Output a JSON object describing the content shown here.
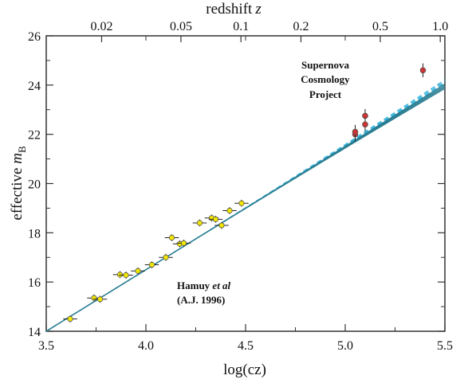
{
  "chart_data": {
    "type": "scatter",
    "xlabel": "log(cz)",
    "ylabel": "effective m_B",
    "ylabel_main": "effective ",
    "ylabel_var": "m",
    "ylabel_sub": "B",
    "top_axis_label": "redshift",
    "top_axis_var": "z",
    "xlim": [
      3.5,
      5.5
    ],
    "ylim": [
      14,
      26
    ],
    "xticks": [
      3.5,
      4.0,
      4.5,
      5.0,
      5.5
    ],
    "xtick_labels": [
      "3.5",
      "4.0",
      "4.5",
      "5.0",
      "5.5"
    ],
    "yticks": [
      14,
      16,
      18,
      20,
      22,
      24,
      26
    ],
    "ytick_labels": [
      "14",
      "16",
      "18",
      "20",
      "22",
      "24",
      "26"
    ],
    "top_ticks": [
      0.02,
      0.05,
      0.1,
      0.2,
      0.5,
      1.0
    ],
    "top_tick_labels": [
      "0.02",
      "0.05",
      "0.1",
      "0.2",
      "0.5",
      "1.0"
    ],
    "annotations": {
      "hamuy_line1_name": "Hamuy ",
      "hamuy_line1_etal": "et al",
      "hamuy_line2": "(A.J. 1996)",
      "scp_line1": "Supernova",
      "scp_line2": "Cosmology",
      "scp_line3": "Project"
    },
    "series": [
      {
        "name": "Hamuy et al (A.J. 1996)",
        "color": "#f2e600",
        "x": [
          3.62,
          3.74,
          3.77,
          3.87,
          3.9,
          3.96,
          4.03,
          4.1,
          4.13,
          4.17,
          4.19,
          4.27,
          4.33,
          4.35,
          4.38,
          4.42,
          4.48
        ],
        "y": [
          14.5,
          15.35,
          15.3,
          16.3,
          16.28,
          16.45,
          16.7,
          17.0,
          17.8,
          17.55,
          17.58,
          18.4,
          18.6,
          18.55,
          18.3,
          18.9,
          19.2
        ]
      },
      {
        "name": "Supernova Cosmology Project",
        "color": "#cc3333",
        "x": [
          5.05,
          5.05,
          5.1,
          5.1,
          5.39
        ],
        "y": [
          22.0,
          22.1,
          22.75,
          22.4,
          24.6
        ]
      }
    ],
    "model_curves": {
      "solid_color": "#2a7e93",
      "dashed_color": "#3fb8e0"
    },
    "grid": false
  }
}
